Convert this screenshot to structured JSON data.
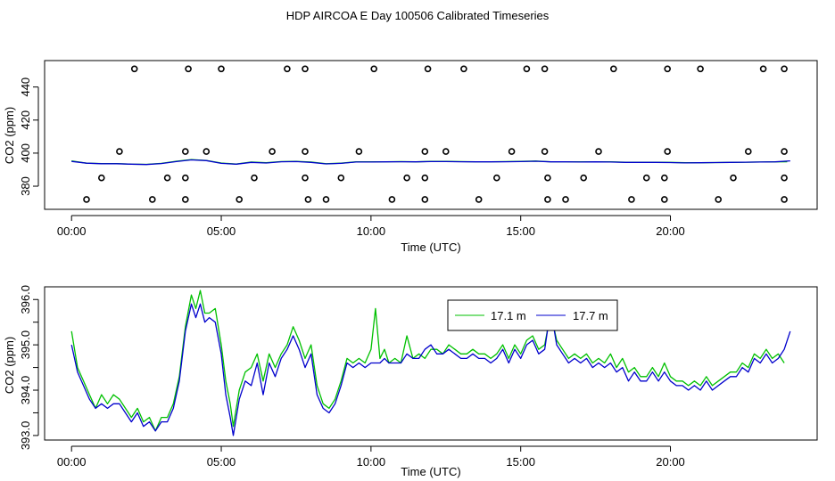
{
  "figure": {
    "title": "HDP AIRCOA E  Day 100506  Calibrated Timeseries"
  },
  "chart_data": [
    {
      "type": "line",
      "xlabel": "Time (UTC)",
      "ylabel": "CO2 (ppm)",
      "xlim": [
        -0.9,
        24.9
      ],
      "ylim": [
        366,
        456
      ],
      "x_ticks": [
        0,
        5,
        10,
        15,
        20
      ],
      "x_tick_labels": [
        "00:00",
        "05:00",
        "10:00",
        "15:00",
        "20:00"
      ],
      "y_ticks": [
        380,
        400,
        420,
        440
      ],
      "y_tick_labels": [
        "380",
        "400",
        "420",
        "440"
      ],
      "grid": false,
      "series": [
        {
          "color": "#00c000",
          "x": [
            0,
            0.5,
            1,
            1.5,
            2,
            2.5,
            3,
            3.5,
            4,
            4.5,
            5,
            5.5,
            6,
            6.5,
            7,
            7.5,
            8,
            8.5,
            9,
            9.5,
            10,
            10.5,
            11,
            11.5,
            12,
            12.5,
            13,
            13.5,
            14,
            14.5,
            15,
            15.5,
            16,
            16.5,
            17,
            17.5,
            18,
            18.5,
            19,
            19.5,
            20,
            20.5,
            21,
            21.5,
            22,
            22.5,
            23,
            23.5,
            23.9
          ],
          "y": [
            395.3,
            393.9,
            393.7,
            393.7,
            393.3,
            393.2,
            393.8,
            395.1,
            396.1,
            395.6,
            394.0,
            393.4,
            394.6,
            394.2,
            394.9,
            395.0,
            394.6,
            393.6,
            393.9,
            394.7,
            394.7,
            394.8,
            394.9,
            394.7,
            395.0,
            395.0,
            394.9,
            394.8,
            394.8,
            394.9,
            395.0,
            395.2,
            394.8,
            394.8,
            394.7,
            394.8,
            394.7,
            394.5,
            394.5,
            394.5,
            394.4,
            394.2,
            394.2,
            394.3,
            394.4,
            394.5,
            394.6,
            394.7,
            394.8
          ]
        },
        {
          "color": "#0000cc",
          "x": [
            0,
            0.5,
            1,
            1.5,
            2,
            2.5,
            3,
            3.5,
            4,
            4.5,
            5,
            5.5,
            6,
            6.5,
            7,
            7.5,
            8,
            8.5,
            9,
            9.5,
            10,
            10.5,
            11,
            11.5,
            12,
            12.5,
            13,
            13.5,
            14,
            14.5,
            15,
            15.5,
            16,
            16.5,
            17,
            17.5,
            18,
            18.5,
            19,
            19.5,
            20,
            20.5,
            21,
            21.5,
            22,
            22.5,
            23,
            23.5,
            24
          ],
          "y": [
            395.0,
            393.9,
            393.6,
            393.6,
            393.3,
            393.1,
            393.7,
            394.9,
            395.9,
            395.5,
            393.8,
            393.3,
            394.4,
            394.0,
            394.8,
            394.9,
            394.4,
            393.5,
            393.8,
            394.6,
            394.6,
            394.7,
            394.8,
            394.7,
            394.9,
            394.9,
            394.8,
            394.7,
            394.7,
            394.8,
            394.9,
            395.1,
            394.7,
            394.7,
            394.6,
            394.7,
            394.6,
            394.4,
            394.4,
            394.4,
            394.3,
            394.1,
            394.2,
            394.3,
            394.4,
            394.5,
            394.6,
            394.7,
            395.3
          ]
        }
      ],
      "scatter_points": {
        "marker": "open-circle",
        "color": "#000000",
        "x": [
          0.5,
          2.7,
          3.8,
          5.6,
          7.9,
          8.5,
          10.7,
          11.8,
          13.6,
          15.9,
          16.5,
          18.7,
          19.8,
          21.6,
          23.8,
          1.0,
          3.2,
          3.8,
          6.1,
          7.8,
          9.0,
          11.2,
          11.8,
          14.2,
          15.9,
          17.1,
          19.2,
          19.8,
          22.1,
          23.8,
          1.6,
          3.8,
          4.5,
          6.7,
          7.8,
          9.6,
          11.8,
          12.5,
          14.7,
          15.8,
          17.6,
          19.9,
          22.6,
          23.8,
          2.1,
          3.9,
          5.0,
          7.2,
          7.8,
          10.1,
          11.9,
          13.1,
          15.2,
          15.8,
          18.1,
          19.9,
          21.0,
          23.1,
          23.8
        ],
        "y": [
          372,
          372,
          372,
          372,
          372,
          372,
          372,
          372,
          372,
          372,
          372,
          372,
          372,
          372,
          372,
          385,
          385,
          385,
          385,
          385,
          385,
          385,
          385,
          385,
          385,
          385,
          385,
          385,
          385,
          385,
          401,
          401,
          401,
          401,
          401,
          401,
          401,
          401,
          401,
          401,
          401,
          401,
          401,
          401,
          451,
          451,
          451,
          451,
          451,
          451,
          451,
          451,
          451,
          451,
          451,
          451,
          451,
          451,
          451
        ]
      }
    },
    {
      "type": "line",
      "xlabel": "Time (UTC)",
      "ylabel": "CO2 (ppm)",
      "xlim": [
        -0.9,
        24.9
      ],
      "ylim": [
        392.9,
        396.28
      ],
      "x_ticks": [
        0,
        5,
        10,
        15,
        20
      ],
      "x_tick_labels": [
        "00:00",
        "05:00",
        "10:00",
        "15:00",
        "20:00"
      ],
      "y_ticks": [
        393.0,
        394.0,
        395.0,
        396.0
      ],
      "y_tick_labels": [
        "393.0",
        "394.0",
        "395.0",
        "396.0"
      ],
      "y_minor_ticks": [
        393.5,
        394.5,
        395.5
      ],
      "grid": false,
      "legend": "top-center",
      "series": [
        {
          "name": "17.1 m",
          "color": "#00c000",
          "x": [
            0,
            0.2,
            0.4,
            0.6,
            0.8,
            1.0,
            1.2,
            1.4,
            1.6,
            1.8,
            2.0,
            2.2,
            2.4,
            2.6,
            2.8,
            3.0,
            3.2,
            3.4,
            3.6,
            3.8,
            4.0,
            4.15,
            4.3,
            4.45,
            4.6,
            4.8,
            5.0,
            5.15,
            5.3,
            5.4,
            5.6,
            5.8,
            6.0,
            6.2,
            6.4,
            6.6,
            6.8,
            7.0,
            7.2,
            7.4,
            7.6,
            7.8,
            8.0,
            8.2,
            8.4,
            8.6,
            8.8,
            9.0,
            9.2,
            9.4,
            9.6,
            9.8,
            10.0,
            10.15,
            10.3,
            10.45,
            10.6,
            10.8,
            11.0,
            11.2,
            11.4,
            11.6,
            11.8,
            12.0,
            12.2,
            12.4,
            12.6,
            12.8,
            13.0,
            13.2,
            13.4,
            13.6,
            13.8,
            14.0,
            14.2,
            14.4,
            14.6,
            14.8,
            15.0,
            15.2,
            15.4,
            15.6,
            15.8,
            16.0,
            16.2,
            16.4,
            16.6,
            16.8,
            17.0,
            17.2,
            17.4,
            17.6,
            17.8,
            18.0,
            18.2,
            18.4,
            18.6,
            18.8,
            19.0,
            19.2,
            19.4,
            19.6,
            19.8,
            20.0,
            20.2,
            20.4,
            20.6,
            20.8,
            21.0,
            21.2,
            21.4,
            21.6,
            21.8,
            22.0,
            22.2,
            22.4,
            22.6,
            22.8,
            23.0,
            23.2,
            23.4,
            23.6,
            23.8
          ],
          "y": [
            395.3,
            394.5,
            394.2,
            393.9,
            393.6,
            393.9,
            393.7,
            393.9,
            393.8,
            393.6,
            393.4,
            393.6,
            393.3,
            393.4,
            393.1,
            393.4,
            393.4,
            393.7,
            394.3,
            395.4,
            396.1,
            395.8,
            396.2,
            395.7,
            395.7,
            395.8,
            395.0,
            394.2,
            393.7,
            393.2,
            394.0,
            394.4,
            394.5,
            394.8,
            394.2,
            394.8,
            394.5,
            394.8,
            395.0,
            395.4,
            395.1,
            394.7,
            395.0,
            394.1,
            393.7,
            393.6,
            393.8,
            394.2,
            394.7,
            394.6,
            394.7,
            394.6,
            394.9,
            395.8,
            394.7,
            394.9,
            394.6,
            394.7,
            394.6,
            395.2,
            394.7,
            394.8,
            394.7,
            394.9,
            394.9,
            394.8,
            395.0,
            394.9,
            394.8,
            394.8,
            394.9,
            394.8,
            394.8,
            394.7,
            394.8,
            395.0,
            394.7,
            395.0,
            394.8,
            395.1,
            395.2,
            394.9,
            395.0,
            395.7,
            395.1,
            394.9,
            394.7,
            394.8,
            394.7,
            394.8,
            394.6,
            394.7,
            394.6,
            394.8,
            394.5,
            394.7,
            394.4,
            394.5,
            394.3,
            394.3,
            394.5,
            394.3,
            394.6,
            394.3,
            394.2,
            394.2,
            394.1,
            394.2,
            394.1,
            394.3,
            394.1,
            394.2,
            394.3,
            394.4,
            394.4,
            394.6,
            394.5,
            394.8,
            394.7,
            394.9,
            394.7,
            394.8,
            394.6
          ]
        },
        {
          "name": "17.7 m",
          "color": "#0000cc",
          "x": [
            0,
            0.2,
            0.4,
            0.6,
            0.8,
            1.0,
            1.2,
            1.4,
            1.6,
            1.8,
            2.0,
            2.2,
            2.4,
            2.6,
            2.8,
            3.0,
            3.2,
            3.4,
            3.6,
            3.8,
            4.0,
            4.15,
            4.3,
            4.45,
            4.6,
            4.8,
            5.0,
            5.15,
            5.3,
            5.4,
            5.6,
            5.8,
            6.0,
            6.2,
            6.4,
            6.6,
            6.8,
            7.0,
            7.2,
            7.4,
            7.6,
            7.8,
            8.0,
            8.2,
            8.4,
            8.6,
            8.8,
            9.0,
            9.2,
            9.4,
            9.6,
            9.8,
            10.0,
            10.15,
            10.3,
            10.45,
            10.6,
            10.8,
            11.0,
            11.2,
            11.4,
            11.6,
            11.8,
            12.0,
            12.2,
            12.4,
            12.6,
            12.8,
            13.0,
            13.2,
            13.4,
            13.6,
            13.8,
            14.0,
            14.2,
            14.4,
            14.6,
            14.8,
            15.0,
            15.2,
            15.4,
            15.6,
            15.8,
            16.0,
            16.2,
            16.4,
            16.6,
            16.8,
            17.0,
            17.2,
            17.4,
            17.6,
            17.8,
            18.0,
            18.2,
            18.4,
            18.6,
            18.8,
            19.0,
            19.2,
            19.4,
            19.6,
            19.8,
            20.0,
            20.2,
            20.4,
            20.6,
            20.8,
            21.0,
            21.2,
            21.4,
            21.6,
            21.8,
            22.0,
            22.2,
            22.4,
            22.6,
            22.8,
            23.0,
            23.2,
            23.4,
            23.6,
            23.8,
            24.0
          ],
          "y": [
            395.0,
            394.4,
            394.1,
            393.8,
            393.6,
            393.7,
            393.6,
            393.7,
            393.7,
            393.5,
            393.3,
            393.5,
            393.2,
            393.3,
            393.1,
            393.3,
            393.3,
            393.6,
            394.2,
            395.3,
            395.9,
            395.6,
            395.9,
            395.5,
            395.6,
            395.5,
            394.8,
            393.9,
            393.4,
            393.0,
            393.8,
            394.2,
            394.1,
            394.6,
            393.9,
            394.6,
            394.3,
            394.7,
            394.9,
            395.2,
            394.9,
            394.5,
            394.8,
            393.9,
            393.6,
            393.5,
            393.7,
            394.1,
            394.6,
            394.5,
            394.6,
            394.5,
            394.6,
            394.6,
            394.6,
            394.7,
            394.6,
            394.6,
            394.6,
            394.8,
            394.7,
            394.7,
            394.9,
            395.0,
            394.8,
            394.8,
            394.9,
            394.8,
            394.7,
            394.7,
            394.8,
            394.7,
            394.7,
            394.6,
            394.7,
            394.9,
            394.6,
            394.9,
            394.7,
            395.0,
            395.1,
            394.8,
            394.9,
            395.8,
            395.0,
            394.8,
            394.6,
            394.7,
            394.6,
            394.7,
            394.5,
            394.6,
            394.5,
            394.6,
            394.4,
            394.5,
            394.2,
            394.4,
            394.2,
            394.2,
            394.4,
            394.2,
            394.4,
            394.2,
            394.1,
            394.1,
            394.0,
            394.1,
            394.0,
            394.2,
            394.0,
            394.1,
            394.2,
            394.3,
            394.3,
            394.5,
            394.4,
            394.7,
            394.6,
            394.8,
            394.6,
            394.7,
            394.9,
            395.3
          ]
        }
      ]
    }
  ]
}
